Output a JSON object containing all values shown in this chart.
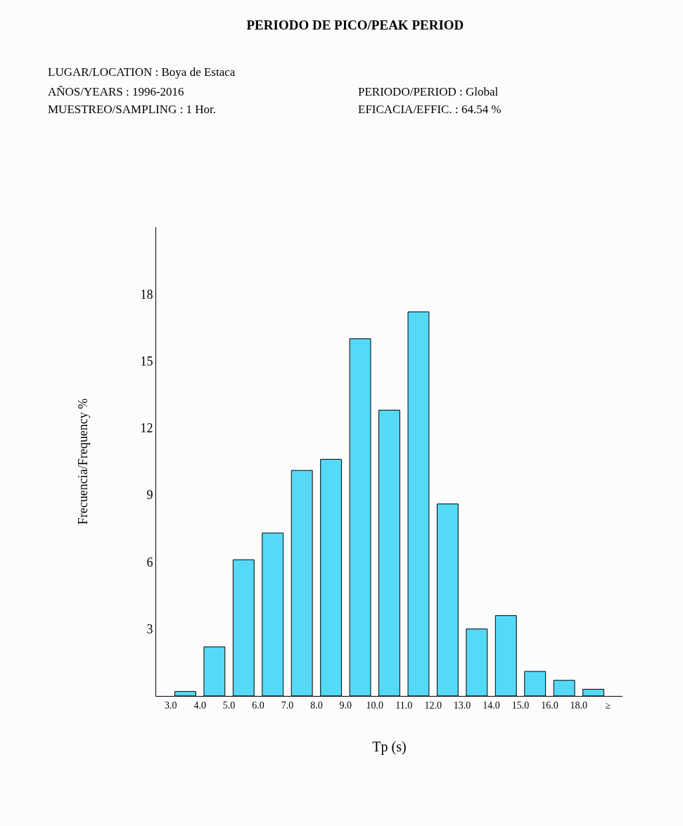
{
  "chart_data": {
    "type": "bar",
    "title": "PERIODO DE PICO/PEAK PERIOD",
    "annotations": [
      "LUGAR/LOCATION : Boya de Estaca",
      "AÑOS/YEARS : 1996-2016",
      "PERIODO/PERIOD : Global",
      "MUESTREO/SAMPLING : 1 Hor.",
      "EFICACIA/EFFIC. : 64.54 %"
    ],
    "categories": [
      "3.0",
      "4.0",
      "5.0",
      "6.0",
      "7.0",
      "8.0",
      "9.0",
      "10.0",
      "11.0",
      "12.0",
      "13.0",
      "14.0",
      "15.0",
      "16.0",
      "18.0",
      "≥"
    ],
    "values": [
      0.2,
      2.2,
      6.1,
      7.3,
      10.1,
      10.6,
      16.0,
      12.8,
      17.2,
      8.6,
      3.0,
      3.6,
      1.1,
      0.7,
      0.3,
      null
    ],
    "color": "#55d9f7",
    "xlabel": "Tp (s)",
    "ylabel": "Frecuencia/Frequency %",
    "ylim": [
      0,
      21
    ],
    "yticks": [
      3,
      6,
      9,
      12,
      15,
      18
    ]
  }
}
